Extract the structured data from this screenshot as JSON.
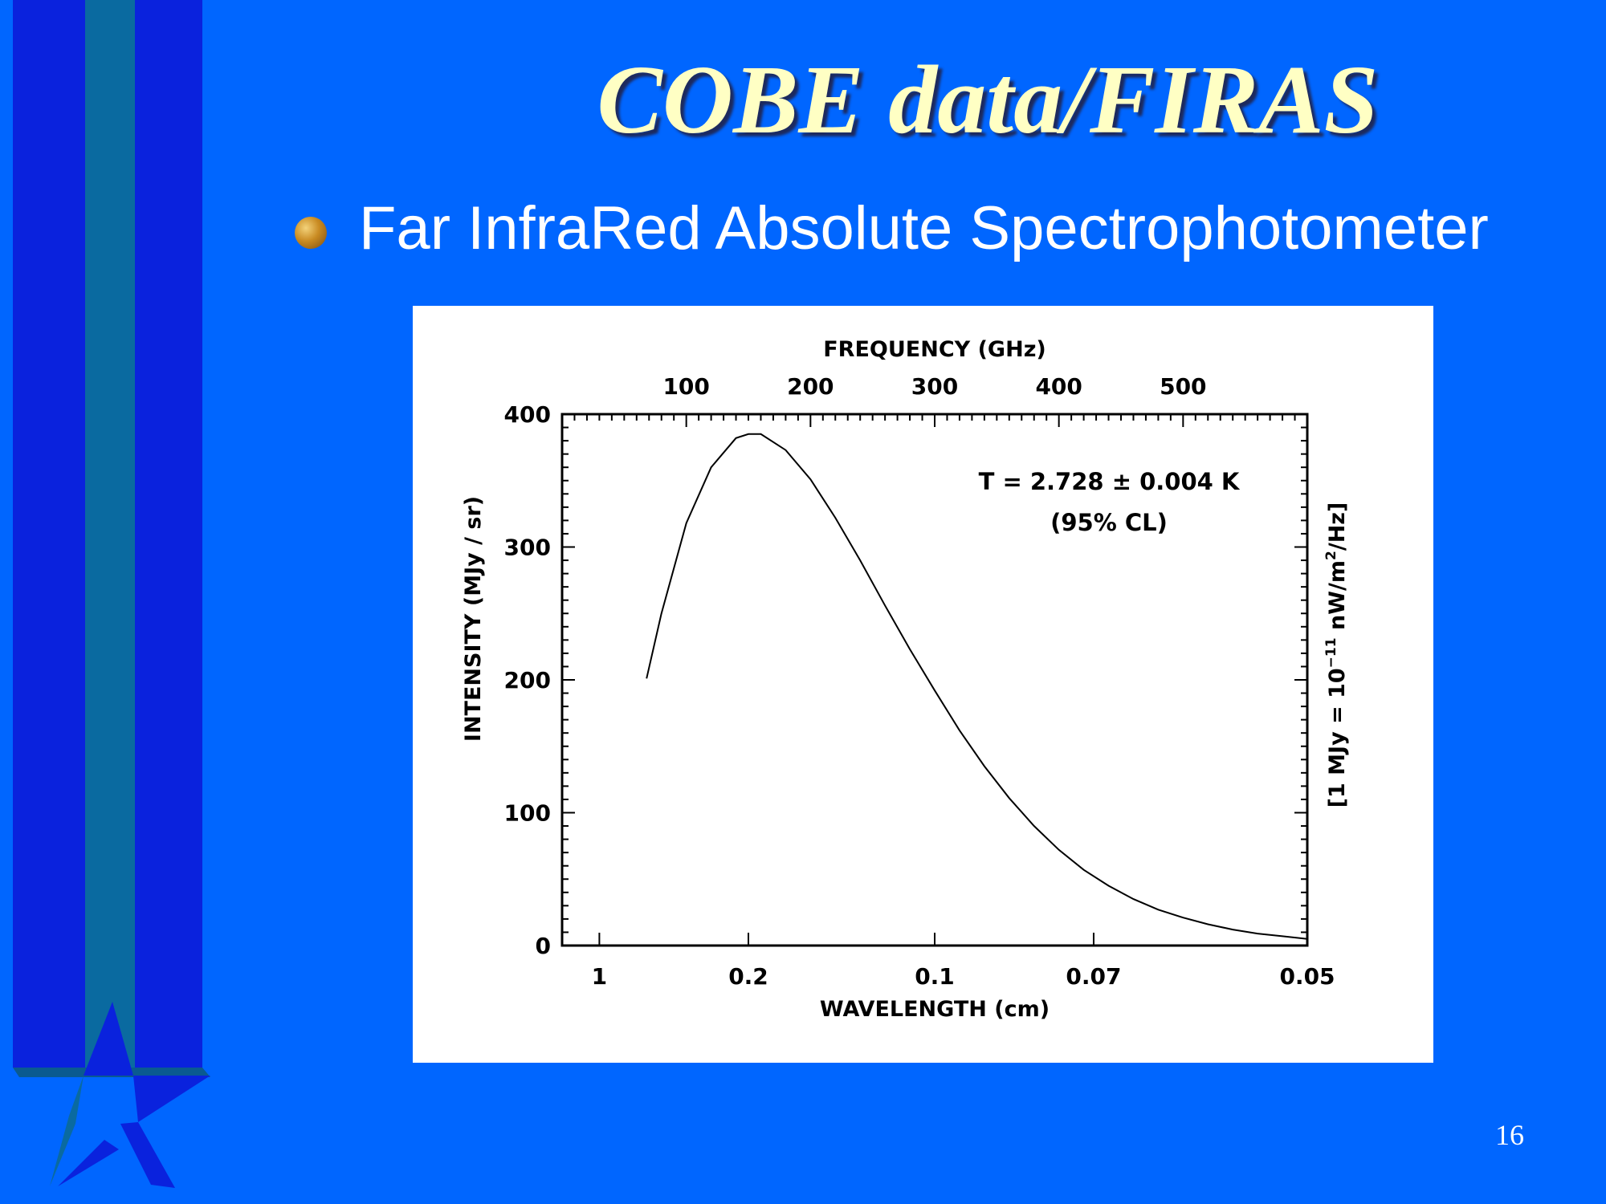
{
  "slide": {
    "title": "COBE data/FIRAS",
    "bullet": "Far InfraRed Absolute Spectrophotometer",
    "page_number": "16",
    "colors": {
      "background": "#0066ff",
      "title": "#ffffc4",
      "text": "#ffffff",
      "bar_dark": "#0a22dd",
      "bar_teal": "#0a6aa0"
    }
  },
  "chart_data": {
    "type": "line",
    "title": "",
    "x_bottom": {
      "label": "WAVELENGTH (cm)",
      "ticks": [
        {
          "label": "1",
          "frequency_ghz": 30
        },
        {
          "label": "0.2",
          "frequency_ghz": 150
        },
        {
          "label": "0.1",
          "frequency_ghz": 300
        },
        {
          "label": "0.07",
          "frequency_ghz": 428
        },
        {
          "label": "0.05",
          "frequency_ghz": 600
        }
      ]
    },
    "x_top": {
      "label": "FREQUENCY (GHz)",
      "ticks": [
        100,
        200,
        300,
        400,
        500
      ],
      "range": [
        0,
        600
      ]
    },
    "y": {
      "label": "INTENSITY (MJy / sr)",
      "ticks": [
        0,
        100,
        200,
        300,
        400
      ],
      "range": [
        0,
        400
      ]
    },
    "y_right_label": "[1 MJy = 10",
    "y_right_label_exp": "−11",
    "y_right_label_mid": " nW/m",
    "y_right_label_exp2": "2",
    "y_right_label_end": "/Hz]",
    "annotation": [
      "T = 2.728 ± 0.004 K",
      "(95% CL)"
    ],
    "series": [
      {
        "x_frequency_ghz": [
          68,
          80,
          100,
          120,
          140,
          150,
          160,
          180,
          200,
          220,
          240,
          260,
          280,
          300,
          320,
          340,
          360,
          380,
          400,
          420,
          440,
          460,
          480,
          500,
          520,
          540,
          560,
          580,
          600
        ],
        "y_intensity": [
          201,
          250,
          318,
          360,
          382,
          385,
          385,
          373,
          351,
          322,
          290,
          256,
          223,
          192,
          162,
          135,
          111,
          90,
          72,
          57,
          45,
          35,
          27,
          21,
          16,
          12,
          9,
          7,
          5
        ]
      }
    ]
  }
}
